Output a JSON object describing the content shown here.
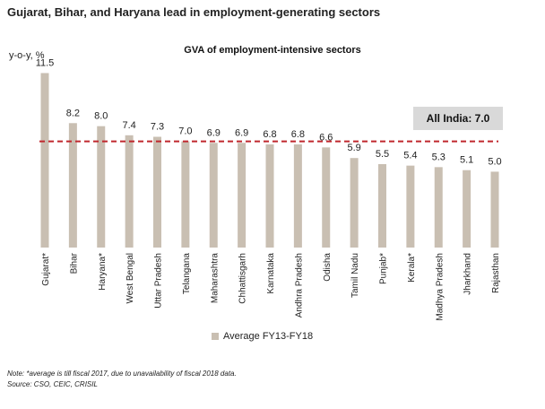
{
  "page_title": "Gujarat, Bihar, and Haryana lead in employment-generating sectors",
  "callout": "All India: 7.0",
  "note": "Note: *average is till fiscal 2017, due to unavailability of fiscal 2018 data.",
  "source": "Source: CSO, CEIC, CRISIL",
  "colors": {
    "bar": "#c9bfb2",
    "average_line": "#c0272d",
    "callout_bg": "#d9d9d9"
  },
  "chart_data": {
    "type": "bar",
    "title": "GVA of employment-intensive sectors",
    "ylabel": "y-o-y, %",
    "xlabel": "",
    "ylim": [
      0,
      12
    ],
    "grid": false,
    "legend_position": "bottom",
    "categories": [
      "Gujarat*",
      "Bihar",
      "Haryana*",
      "West Bengal",
      "Uttar Pradesh",
      "Telangana",
      "Maharashtra",
      "Chhattisgarh",
      "Karnataka",
      "Andhra Pradesh",
      "Odisha",
      "Tamil Nadu",
      "Punjab*",
      "Kerala*",
      "Madhya Pradesh",
      "Jharkhand",
      "Rajasthan"
    ],
    "series": [
      {
        "name": "Average FY13-FY18",
        "values": [
          11.5,
          8.2,
          8.0,
          7.4,
          7.3,
          7.0,
          6.9,
          6.9,
          6.8,
          6.8,
          6.6,
          5.9,
          5.5,
          5.4,
          5.3,
          5.1,
          5.0
        ]
      }
    ],
    "value_labels": [
      "11.5",
      "8.2",
      "8.0",
      "7.4",
      "7.3",
      "7.0",
      "6.9",
      "6.9",
      "6.8",
      "6.8",
      "6.6",
      "5.9",
      "5.5",
      "5.4",
      "5.3",
      "5.1",
      "5.0"
    ],
    "reference_line": {
      "value": 7.0,
      "style": "dashed"
    }
  }
}
